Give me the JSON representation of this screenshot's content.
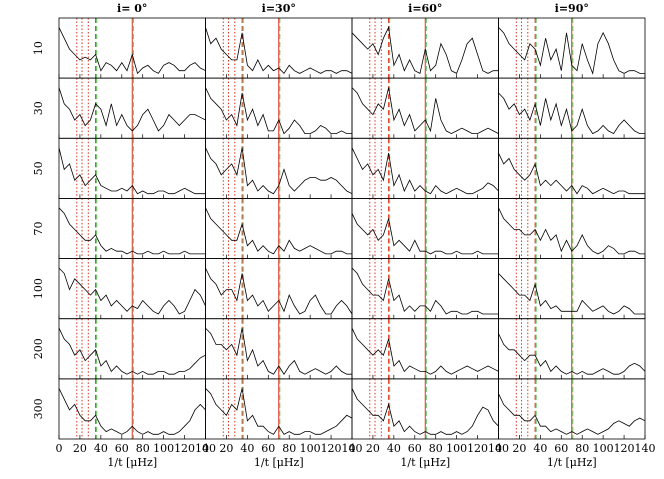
{
  "chart_data": {
    "type": "line",
    "columns": [
      "i= 0°",
      "i=30°",
      "i=60°",
      "i=90°"
    ],
    "rows": [
      "10",
      "30",
      "50",
      "70",
      "100",
      "200",
      "300"
    ],
    "xlabel": "1/t [μHz]",
    "xlim": [
      0,
      140
    ],
    "xticks": [
      0,
      20,
      40,
      60,
      80,
      100,
      120,
      140
    ],
    "ylim": [
      0,
      1
    ],
    "color": "#000000",
    "x": [
      0,
      5,
      10,
      15,
      20,
      25,
      30,
      35,
      40,
      45,
      50,
      55,
      60,
      65,
      70,
      75,
      80,
      85,
      90,
      95,
      100,
      105,
      110,
      115,
      120,
      125,
      130,
      135,
      140
    ],
    "reference_lines": [
      {
        "x": 17,
        "color": "#e0301e",
        "style": "dotted"
      },
      {
        "x": 22,
        "color": "#e0301e",
        "style": "dotted"
      },
      {
        "x": 28,
        "color": "#e0301e",
        "style": "dotted"
      },
      {
        "x": 35,
        "color": "#e0301e",
        "style": "dashed"
      },
      {
        "x": 36,
        "color": "#5cc15c",
        "style": "dashed"
      },
      {
        "x": 70,
        "color": "#e0301e",
        "style": "solid"
      },
      {
        "x": 71,
        "color": "#5cc15c",
        "style": "dashed"
      }
    ],
    "panels": [
      [
        {
          "values": [
            0.9,
            0.7,
            0.5,
            0.4,
            0.3,
            0.35,
            0.3,
            0.4,
            0.1,
            0.25,
            0.2,
            0.1,
            0.25,
            0.1,
            0.4,
            0.05,
            0.15,
            0.2,
            0.1,
            0.05,
            0.2,
            0.25,
            0.2,
            0.1,
            0.1,
            0.2,
            0.25,
            0.15,
            0.1
          ]
        },
        {
          "values": [
            0.9,
            0.6,
            0.7,
            0.5,
            0.4,
            0.3,
            0.3,
            0.8,
            0.2,
            0.1,
            0.3,
            0.1,
            0.2,
            0.1,
            0.15,
            0.05,
            0.2,
            0.1,
            0.05,
            0.1,
            0.15,
            0.1,
            0.05,
            0.1,
            0.1,
            0.05,
            0.1,
            0.1,
            0.05
          ]
        },
        {
          "values": [
            0.8,
            0.7,
            0.6,
            0.5,
            0.6,
            0.4,
            0.7,
            0.9,
            0.2,
            0.4,
            0.1,
            0.3,
            0.1,
            0.05,
            0.5,
            0.1,
            0.2,
            0.6,
            0.4,
            0.1,
            0.05,
            0.3,
            0.6,
            0.7,
            0.4,
            0.1,
            0.05,
            0.1,
            0.1
          ]
        },
        {
          "values": [
            0.9,
            0.8,
            0.6,
            0.5,
            0.4,
            0.3,
            0.6,
            0.5,
            0.2,
            0.7,
            0.3,
            0.5,
            0.1,
            0.8,
            0.2,
            0.1,
            0.6,
            0.3,
            0.05,
            0.6,
            0.8,
            0.6,
            0.3,
            0.1,
            0.05,
            0.1,
            0.1,
            0.05,
            0.05
          ]
        }
      ],
      [
        {
          "values": [
            0.9,
            0.6,
            0.5,
            0.3,
            0.4,
            0.2,
            0.3,
            0.6,
            0.5,
            0.2,
            0.6,
            0.2,
            0.4,
            0.2,
            0.1,
            0.2,
            0.4,
            0.5,
            0.3,
            0.1,
            0.2,
            0.4,
            0.3,
            0.2,
            0.3,
            0.4,
            0.4,
            0.35,
            0.3
          ]
        },
        {
          "values": [
            0.9,
            0.7,
            0.6,
            0.5,
            0.3,
            0.4,
            0.2,
            0.8,
            0.3,
            0.5,
            0.2,
            0.4,
            0.1,
            0.1,
            0.3,
            0.05,
            0.15,
            0.3,
            0.2,
            0.05,
            0.05,
            0.1,
            0.2,
            0.15,
            0.05,
            0.05,
            0.1,
            0.05,
            0.05
          ]
        },
        {
          "values": [
            0.9,
            0.8,
            0.6,
            0.5,
            0.4,
            0.6,
            0.5,
            0.9,
            0.3,
            0.5,
            0.2,
            0.4,
            0.1,
            0.2,
            0.3,
            0.1,
            0.7,
            0.3,
            0.1,
            0.05,
            0.1,
            0.15,
            0.1,
            0.05,
            0.05,
            0.1,
            0.15,
            0.1,
            0.05
          ]
        },
        {
          "values": [
            0.8,
            0.7,
            0.5,
            0.6,
            0.4,
            0.5,
            0.3,
            0.6,
            0.2,
            0.7,
            0.3,
            0.6,
            0.2,
            0.5,
            0.1,
            0.2,
            0.5,
            0.2,
            0.05,
            0.1,
            0.2,
            0.1,
            0.05,
            0.2,
            0.3,
            0.2,
            0.1,
            0.05,
            0.05
          ]
        }
      ],
      [
        {
          "values": [
            0.9,
            0.5,
            0.6,
            0.3,
            0.4,
            0.2,
            0.3,
            0.4,
            0.2,
            0.15,
            0.1,
            0.1,
            0.15,
            0.1,
            0.2,
            0.05,
            0.1,
            0.05,
            0.05,
            0.1,
            0.1,
            0.05,
            0.05,
            0.1,
            0.15,
            0.1,
            0.05,
            0.05,
            0.05
          ]
        },
        {
          "values": [
            0.9,
            0.7,
            0.6,
            0.4,
            0.5,
            0.6,
            0.4,
            0.9,
            0.2,
            0.3,
            0.1,
            0.2,
            0.1,
            0.05,
            0.2,
            0.5,
            0.2,
            0.1,
            0.2,
            0.3,
            0.35,
            0.35,
            0.3,
            0.3,
            0.35,
            0.3,
            0.2,
            0.1,
            0.05
          ]
        },
        {
          "values": [
            0.9,
            0.7,
            0.5,
            0.6,
            0.4,
            0.5,
            0.3,
            0.8,
            0.2,
            0.4,
            0.1,
            0.3,
            0.1,
            0.2,
            0.1,
            0.05,
            0.2,
            0.1,
            0.05,
            0.1,
            0.15,
            0.1,
            0.05,
            0.05,
            0.1,
            0.15,
            0.25,
            0.2,
            0.1
          ]
        },
        {
          "values": [
            0.8,
            0.6,
            0.7,
            0.5,
            0.4,
            0.3,
            0.4,
            0.6,
            0.2,
            0.3,
            0.2,
            0.3,
            0.2,
            0.1,
            0.2,
            0.05,
            0.2,
            0.15,
            0.05,
            0.1,
            0.15,
            0.1,
            0.05,
            0.1,
            0.1,
            0.05,
            0.05,
            0.05,
            0.05
          ]
        }
      ],
      [
        {
          "values": [
            0.9,
            0.8,
            0.6,
            0.5,
            0.4,
            0.3,
            0.3,
            0.4,
            0.2,
            0.1,
            0.15,
            0.1,
            0.1,
            0.05,
            0.1,
            0.05,
            0.05,
            0.1,
            0.05,
            0.05,
            0.1,
            0.05,
            0.05,
            0.05,
            0.1,
            0.05,
            0.05,
            0.05,
            0.05
          ]
        },
        {
          "values": [
            0.9,
            0.7,
            0.6,
            0.5,
            0.4,
            0.3,
            0.3,
            0.6,
            0.2,
            0.3,
            0.1,
            0.2,
            0.1,
            0.05,
            0.2,
            0.1,
            0.3,
            0.15,
            0.1,
            0.15,
            0.2,
            0.15,
            0.1,
            0.05,
            0.05,
            0.1,
            0.1,
            0.05,
            0.05
          ]
        },
        {
          "values": [
            0.8,
            0.6,
            0.5,
            0.4,
            0.5,
            0.3,
            0.4,
            0.7,
            0.2,
            0.3,
            0.2,
            0.1,
            0.3,
            0.1,
            0.1,
            0.05,
            0.1,
            0.1,
            0.05,
            0.05,
            0.1,
            0.05,
            0.05,
            0.05,
            0.1,
            0.05,
            0.05,
            0.05,
            0.05
          ]
        },
        {
          "values": [
            0.9,
            0.7,
            0.6,
            0.5,
            0.5,
            0.4,
            0.4,
            0.5,
            0.3,
            0.5,
            0.3,
            0.4,
            0.1,
            0.3,
            0.1,
            0.2,
            0.4,
            0.2,
            0.1,
            0.05,
            0.1,
            0.2,
            0.15,
            0.05,
            0.05,
            0.1,
            0.1,
            0.05,
            0.05
          ]
        }
      ],
      [
        {
          "values": [
            0.9,
            0.8,
            0.5,
            0.7,
            0.6,
            0.5,
            0.4,
            0.5,
            0.3,
            0.4,
            0.2,
            0.3,
            0.2,
            0.1,
            0.2,
            0.15,
            0.3,
            0.2,
            0.1,
            0.05,
            0.2,
            0.3,
            0.2,
            0.05,
            0.1,
            0.3,
            0.5,
            0.4,
            0.2
          ]
        },
        {
          "values": [
            0.9,
            0.7,
            0.6,
            0.4,
            0.5,
            0.5,
            0.3,
            0.8,
            0.3,
            0.4,
            0.2,
            0.3,
            0.1,
            0.2,
            0.3,
            0.1,
            0.4,
            0.2,
            0.05,
            0.1,
            0.3,
            0.4,
            0.2,
            0.05,
            0.05,
            0.2,
            0.3,
            0.2,
            0.05
          ]
        },
        {
          "values": [
            0.9,
            0.8,
            0.6,
            0.5,
            0.4,
            0.4,
            0.3,
            0.7,
            0.3,
            0.4,
            0.1,
            0.2,
            0.1,
            0.2,
            0.2,
            0.1,
            0.3,
            0.2,
            0.05,
            0.1,
            0.1,
            0.05,
            0.05,
            0.1,
            0.1,
            0.05,
            0.05,
            0.05,
            0.05
          ]
        },
        {
          "values": [
            0.8,
            0.7,
            0.6,
            0.5,
            0.4,
            0.4,
            0.3,
            0.6,
            0.2,
            0.3,
            0.15,
            0.2,
            0.1,
            0.1,
            0.1,
            0.1,
            0.3,
            0.2,
            0.1,
            0.15,
            0.2,
            0.1,
            0.05,
            0.1,
            0.2,
            0.15,
            0.05,
            0.05,
            0.05
          ]
        }
      ],
      [
        {
          "values": [
            0.9,
            0.7,
            0.6,
            0.4,
            0.5,
            0.3,
            0.4,
            0.5,
            0.2,
            0.3,
            0.1,
            0.2,
            0.1,
            0.05,
            0.1,
            0.05,
            0.1,
            0.05,
            0.05,
            0.1,
            0.1,
            0.05,
            0.05,
            0.1,
            0.1,
            0.15,
            0.25,
            0.35,
            0.4
          ]
        },
        {
          "values": [
            0.9,
            0.8,
            0.6,
            0.6,
            0.5,
            0.6,
            0.4,
            0.9,
            0.3,
            0.5,
            0.2,
            0.3,
            0.1,
            0.05,
            0.2,
            0.05,
            0.2,
            0.3,
            0.1,
            0.05,
            0.1,
            0.15,
            0.1,
            0.05,
            0.1,
            0.2,
            0.1,
            0.05,
            0.05
          ]
        },
        {
          "values": [
            0.9,
            0.7,
            0.6,
            0.5,
            0.4,
            0.5,
            0.4,
            0.7,
            0.2,
            0.3,
            0.1,
            0.2,
            0.15,
            0.1,
            0.1,
            0.05,
            0.1,
            0.2,
            0.1,
            0.05,
            0.1,
            0.15,
            0.2,
            0.15,
            0.1,
            0.15,
            0.2,
            0.15,
            0.1
          ]
        },
        {
          "values": [
            0.8,
            0.6,
            0.5,
            0.5,
            0.4,
            0.3,
            0.4,
            0.4,
            0.2,
            0.3,
            0.1,
            0.2,
            0.1,
            0.05,
            0.1,
            0.05,
            0.1,
            0.05,
            0.05,
            0.1,
            0.15,
            0.1,
            0.05,
            0.05,
            0.1,
            0.2,
            0.25,
            0.2,
            0.1
          ]
        }
      ],
      [
        {
          "values": [
            0.9,
            0.7,
            0.5,
            0.6,
            0.4,
            0.3,
            0.3,
            0.4,
            0.2,
            0.1,
            0.15,
            0.1,
            0.05,
            0.1,
            0.2,
            0.1,
            0.05,
            0.1,
            0.05,
            0.05,
            0.1,
            0.05,
            0.05,
            0.1,
            0.2,
            0.3,
            0.5,
            0.6,
            0.5
          ]
        },
        {
          "values": [
            0.9,
            0.8,
            0.6,
            0.5,
            0.4,
            0.6,
            0.5,
            0.9,
            0.3,
            0.4,
            0.2,
            0.2,
            0.1,
            0.05,
            0.2,
            0.05,
            0.1,
            0.05,
            0.05,
            0.1,
            0.1,
            0.05,
            0.05,
            0.1,
            0.15,
            0.2,
            0.3,
            0.4,
            0.35
          ]
        },
        {
          "values": [
            0.9,
            0.7,
            0.6,
            0.5,
            0.4,
            0.4,
            0.3,
            0.6,
            0.2,
            0.3,
            0.1,
            0.2,
            0.1,
            0.05,
            0.1,
            0.05,
            0.05,
            0.1,
            0.05,
            0.05,
            0.1,
            0.05,
            0.1,
            0.2,
            0.4,
            0.55,
            0.5,
            0.3,
            0.2
          ]
        },
        {
          "values": [
            0.8,
            0.6,
            0.5,
            0.4,
            0.4,
            0.3,
            0.3,
            0.4,
            0.2,
            0.2,
            0.1,
            0.15,
            0.1,
            0.05,
            0.1,
            0.05,
            0.1,
            0.15,
            0.1,
            0.05,
            0.1,
            0.15,
            0.25,
            0.3,
            0.25,
            0.2,
            0.3,
            0.35,
            0.3
          ]
        }
      ]
    ]
  }
}
